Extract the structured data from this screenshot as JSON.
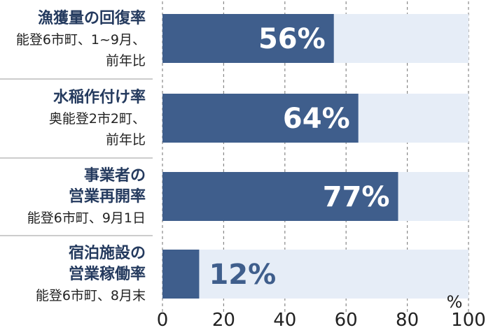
{
  "chart_data": {
    "type": "bar",
    "orientation": "horizontal",
    "categories": [
      {
        "title_lines": [
          "漁獲量の回復率"
        ],
        "sub_lines": [
          "能登6市町、1~9月、",
          "前年比"
        ]
      },
      {
        "title_lines": [
          "水稲作付け率"
        ],
        "sub_lines": [
          "奥能登2市2町、",
          "前年比"
        ]
      },
      {
        "title_lines": [
          "事業者の",
          "営業再開率"
        ],
        "sub_lines": [
          "能登6市町、9月1日"
        ]
      },
      {
        "title_lines": [
          "宿泊施設の",
          "営業稼働率"
        ],
        "sub_lines": [
          "能登6市町、8月末"
        ]
      }
    ],
    "values": [
      56,
      64,
      77,
      12
    ],
    "value_labels": [
      "56%",
      "64%",
      "77%",
      "12%"
    ],
    "xlim": [
      0,
      100
    ],
    "x_ticks": [
      "0",
      "20",
      "40",
      "60",
      "80",
      "100"
    ],
    "unit_label": "%",
    "grid": true
  },
  "colors": {
    "bar": "#3f5e8c",
    "track": "#e6edf7",
    "title": "#243a5e",
    "label_inside": "#ffffff",
    "label_outside": "#3f5e8c",
    "grid": "#888888"
  }
}
